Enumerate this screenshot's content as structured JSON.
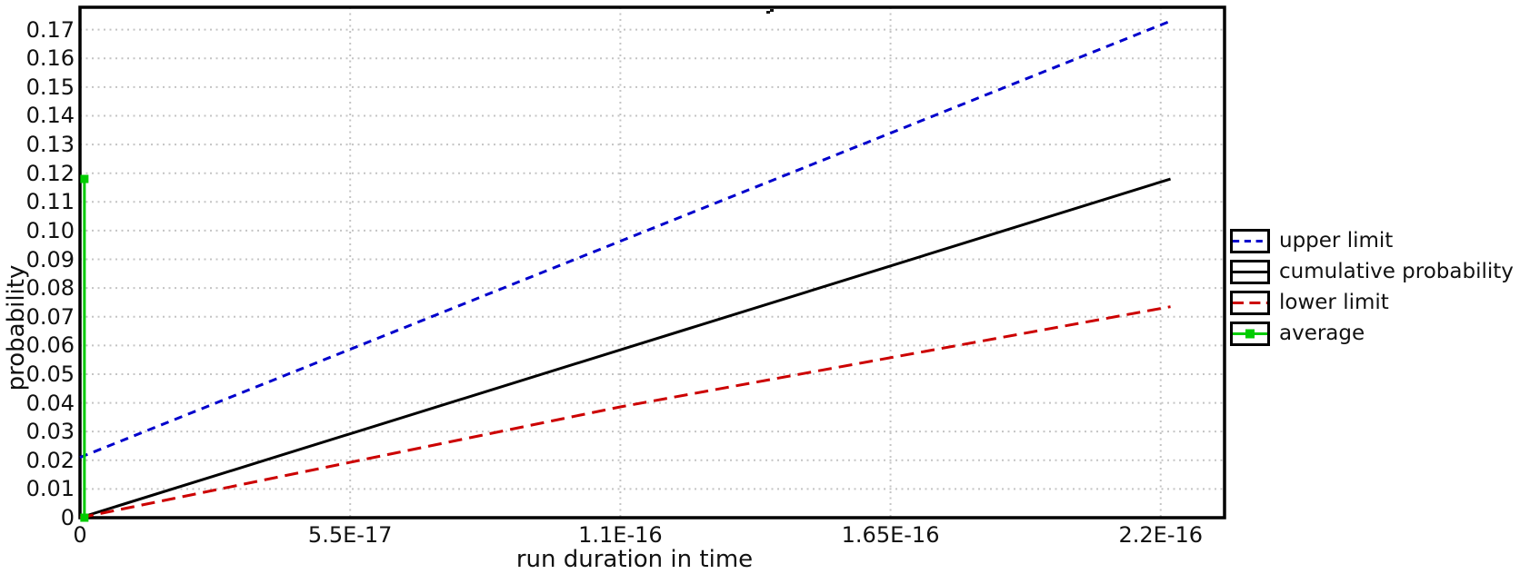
{
  "page": {
    "background": "#ffffff",
    "frame_color": "#000000",
    "grid_color": "#c4c4c4",
    "text_color": "#111111",
    "title_fragment_note": "clipped descender of cut-off chart title"
  },
  "chart_data": {
    "type": "line",
    "title": "",
    "xlabel": "run duration in time",
    "ylabel": "probability",
    "xlim": [
      0,
      2.33e-16
    ],
    "ylim": [
      0,
      0.1778
    ],
    "grid": true,
    "legend_position": "right-outside",
    "x_ticks": [
      {
        "label": "0",
        "value": 0
      },
      {
        "label": "5.5E-17",
        "value": 5.5e-17
      },
      {
        "label": "1.1E-16",
        "value": 1.1e-16
      },
      {
        "label": "1.65E-16",
        "value": 1.65e-16
      },
      {
        "label": "2.2E-16",
        "value": 2.2e-16
      }
    ],
    "y_ticks": [
      {
        "label": "0",
        "value": 0
      },
      {
        "label": "0.01",
        "value": 0.01
      },
      {
        "label": "0.02",
        "value": 0.02
      },
      {
        "label": "0.03",
        "value": 0.03
      },
      {
        "label": "0.04",
        "value": 0.04
      },
      {
        "label": "0.05",
        "value": 0.05
      },
      {
        "label": "0.06",
        "value": 0.06
      },
      {
        "label": "0.07",
        "value": 0.07
      },
      {
        "label": "0.08",
        "value": 0.08
      },
      {
        "label": "0.09",
        "value": 0.09
      },
      {
        "label": "0.10",
        "value": 0.1
      },
      {
        "label": "0.11",
        "value": 0.11
      },
      {
        "label": "0.12",
        "value": 0.12
      },
      {
        "label": "0.13",
        "value": 0.13
      },
      {
        "label": "0.14",
        "value": 0.14
      },
      {
        "label": "0.15",
        "value": 0.15
      },
      {
        "label": "0.16",
        "value": 0.16
      },
      {
        "label": "0.17",
        "value": 0.17
      }
    ],
    "series": [
      {
        "name": "upper limit",
        "color": "#0000cc",
        "dash": [
          9,
          7
        ],
        "width": 3,
        "marker": null,
        "points": [
          [
            0,
            0.021
          ],
          [
            1.11e-16,
            0.097
          ],
          [
            2.22e-16,
            0.173
          ]
        ]
      },
      {
        "name": "cumulative probability",
        "color": "#000000",
        "dash": null,
        "width": 3,
        "marker": null,
        "points": [
          [
            0,
            0
          ],
          [
            2.22e-16,
            0.118
          ]
        ]
      },
      {
        "name": "lower limit",
        "color": "#cc0000",
        "dash": [
          15,
          8
        ],
        "width": 3,
        "marker": null,
        "points": [
          [
            0,
            0
          ],
          [
            1.1e-16,
            0.0386
          ],
          [
            2.22e-16,
            0.0735
          ]
        ]
      },
      {
        "name": "average",
        "color": "#00cc00",
        "dash": null,
        "width": 3,
        "marker": "square",
        "marker_size": 9,
        "points": [
          [
            9e-19,
            0
          ],
          [
            9e-19,
            0.118
          ]
        ]
      }
    ]
  }
}
